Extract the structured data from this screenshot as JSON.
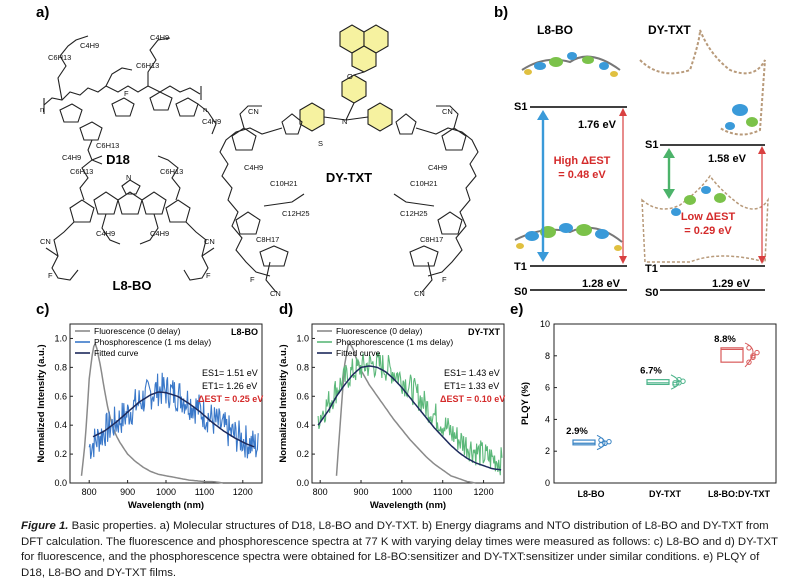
{
  "panels": {
    "a": "a)",
    "b": "b)",
    "c": "c)",
    "d": "d)",
    "e": "e)"
  },
  "panel_a": {
    "mol_d18": "D18",
    "mol_l8bo": "L8-BO",
    "mol_dytxt": "DY-TXT",
    "substituents": {
      "c4h9": "C4H9",
      "c6h13": "C6H13",
      "c8h17": "C8H17",
      "c10h21": "C10H21",
      "c12h25": "C12H25",
      "f": "F",
      "cn": "CN",
      "n": "N",
      "s": "S",
      "o": "O",
      "n_sub": "n"
    }
  },
  "panel_b": {
    "l8bo": {
      "title": "L8-BO",
      "s1": "S1",
      "t1": "T1",
      "s0": "S0",
      "s1_energy": "1.76 eV",
      "t1_energy": "1.28 eV",
      "dest_label": "High ΔEST",
      "dest_value": "= 0.48 eV"
    },
    "dytxt": {
      "title": "DY-TXT",
      "s1": "S1",
      "t1": "T1",
      "s0": "S0",
      "s1_energy": "1.58 eV",
      "t1_energy": "1.29 eV",
      "dest_label": "Low ΔEST",
      "dest_value": "= 0.29 eV"
    }
  },
  "chart_data": [
    {
      "panel": "c",
      "type": "line",
      "title": "L8-BO",
      "xlabel": "Wavelength (nm)",
      "ylabel": "Normalized Intensity (a.u.)",
      "xlim": [
        750,
        1250
      ],
      "ylim": [
        0,
        1.1
      ],
      "xticks": [
        800,
        900,
        1000,
        1100,
        1200
      ],
      "yticks": [
        0.0,
        0.2,
        0.4,
        0.6,
        0.8,
        1.0
      ],
      "legend": [
        "Fluorescence (0 delay)",
        "Phosphorescence (1 ms delay)",
        "Fitted curve"
      ],
      "annotations": {
        "es1": "ES1= 1.51 eV",
        "et1": "ET1= 1.26 eV",
        "dest": "ΔEST = 0.25 eV"
      },
      "series": [
        {
          "name": "Fluorescence (0 delay)",
          "color": "#8a8a8a",
          "x": [
            780,
            790,
            800,
            810,
            815,
            820,
            830,
            840,
            850,
            860,
            870,
            880,
            900,
            920,
            940,
            960,
            980,
            1000,
            1020,
            1040,
            1060,
            1080,
            1100,
            1120,
            1150
          ],
          "y": [
            0.05,
            0.3,
            0.72,
            0.93,
            0.97,
            0.93,
            0.8,
            0.64,
            0.5,
            0.4,
            0.33,
            0.28,
            0.2,
            0.15,
            0.11,
            0.08,
            0.06,
            0.05,
            0.04,
            0.03,
            0.02,
            0.015,
            0.01,
            0.01,
            0.0
          ]
        },
        {
          "name": "Phosphorescence (1 ms delay)",
          "color": "#3a78c9",
          "noisy": true,
          "noise": 0.12,
          "x": [
            800,
            820,
            840,
            860,
            880,
            900,
            920,
            940,
            960,
            980,
            1000,
            1020,
            1040,
            1060,
            1080,
            1100,
            1120,
            1140,
            1160,
            1180,
            1200,
            1220,
            1240
          ],
          "y": [
            0.25,
            0.3,
            0.36,
            0.4,
            0.44,
            0.48,
            0.54,
            0.58,
            0.62,
            0.65,
            0.64,
            0.62,
            0.6,
            0.56,
            0.52,
            0.48,
            0.44,
            0.4,
            0.36,
            0.33,
            0.3,
            0.27,
            0.25
          ]
        },
        {
          "name": "Fitted curve",
          "color": "#1d2a5c",
          "x": [
            810,
            840,
            870,
            900,
            930,
            960,
            980,
            1000,
            1030,
            1060,
            1090,
            1120,
            1150,
            1180,
            1210,
            1230
          ],
          "y": [
            0.32,
            0.36,
            0.42,
            0.49,
            0.56,
            0.61,
            0.63,
            0.625,
            0.6,
            0.55,
            0.49,
            0.42,
            0.36,
            0.31,
            0.27,
            0.25
          ]
        }
      ]
    },
    {
      "panel": "d",
      "type": "line",
      "title": "DY-TXT",
      "xlabel": "Wavelength (nm)",
      "ylabel": "Normalized Intensity (a.u.)",
      "xlim": [
        780,
        1250
      ],
      "ylim": [
        0,
        1.1
      ],
      "xticks": [
        800,
        900,
        1000,
        1100,
        1200
      ],
      "yticks": [
        0.0,
        0.2,
        0.4,
        0.6,
        0.8,
        1.0
      ],
      "legend": [
        "Fluorescence (0 delay)",
        "Phosphorescence (1 ms delay)",
        "Fitted curve"
      ],
      "annotations": {
        "es1": "ES1= 1.43 eV",
        "et1": "ET1= 1.33 eV",
        "dest": "ΔEST = 0.10 eV"
      },
      "series": [
        {
          "name": "Fluorescence (0 delay)",
          "color": "#8a8a8a",
          "x": [
            840,
            850,
            860,
            870,
            880,
            890,
            900,
            920,
            940,
            960,
            980,
            1000,
            1020,
            1040,
            1060,
            1080,
            1100,
            1120,
            1140,
            1160,
            1180
          ],
          "y": [
            0.05,
            0.45,
            0.82,
            0.98,
            0.93,
            0.85,
            0.78,
            0.68,
            0.6,
            0.52,
            0.44,
            0.37,
            0.3,
            0.24,
            0.18,
            0.13,
            0.09,
            0.05,
            0.03,
            0.01,
            0.0
          ]
        },
        {
          "name": "Phosphorescence (1 ms delay)",
          "color": "#5cb87a",
          "noisy": true,
          "noise": 0.1,
          "x": [
            795,
            820,
            840,
            860,
            880,
            900,
            920,
            940,
            960,
            980,
            1000,
            1020,
            1040,
            1060,
            1080,
            1100,
            1120,
            1140,
            1160,
            1180,
            1200,
            1220,
            1245
          ],
          "y": [
            0.45,
            0.55,
            0.65,
            0.72,
            0.77,
            0.8,
            0.82,
            0.82,
            0.8,
            0.77,
            0.72,
            0.66,
            0.6,
            0.53,
            0.47,
            0.41,
            0.35,
            0.3,
            0.26,
            0.22,
            0.19,
            0.17,
            0.15
          ]
        },
        {
          "name": "Fitted curve",
          "color": "#1d2a5c",
          "x": [
            795,
            820,
            840,
            860,
            880,
            900,
            920,
            940,
            960,
            980,
            1000,
            1020,
            1040,
            1060,
            1080,
            1100,
            1120,
            1140,
            1160,
            1180,
            1200,
            1220,
            1245
          ],
          "y": [
            0.4,
            0.5,
            0.6,
            0.68,
            0.75,
            0.8,
            0.81,
            0.8,
            0.77,
            0.72,
            0.66,
            0.59,
            0.52,
            0.45,
            0.38,
            0.32,
            0.26,
            0.21,
            0.17,
            0.14,
            0.12,
            0.1,
            0.09
          ]
        }
      ]
    },
    {
      "panel": "e",
      "type": "scatter",
      "ylabel": "PLQY (%)",
      "ylim": [
        0,
        10
      ],
      "yticks": [
        0,
        2,
        4,
        6,
        8,
        10
      ],
      "categories": [
        "L8-BO",
        "DY-TXT",
        "L8-BO:DY-TXT"
      ],
      "values": [
        2.9,
        6.7,
        8.8
      ],
      "value_labels": [
        "2.9%",
        "6.7%",
        "8.8%"
      ],
      "colors": [
        "#3a84c4",
        "#4cb38a",
        "#d85a5a"
      ],
      "points": [
        [
          2.4,
          2.5,
          2.6,
          2.7,
          2.5
        ],
        [
          6.2,
          6.3,
          6.4,
          6.3,
          6.5
        ],
        [
          7.6,
          7.9,
          8.2,
          8.5,
          8.0
        ]
      ]
    }
  ],
  "caption": {
    "lead": "Figure 1.",
    "text": " Basic properties. a) Molecular structures of D18, L8-BO and DY-TXT. b) Energy diagrams and NTO distribution of L8-BO and DY-TXT from DFT calculation. The fluorescence and phosphorescence spectra at 77 K with varying delay times were measured as follows: c) L8-BO and d) DY-TXT for fluorescence, and the phosphorescence spectra were obtained for L8-BO:sensitizer and DY-TXT:sensitizer under similar conditions. e) PLQY of D18, L8-BO and DY-TXT films."
  }
}
